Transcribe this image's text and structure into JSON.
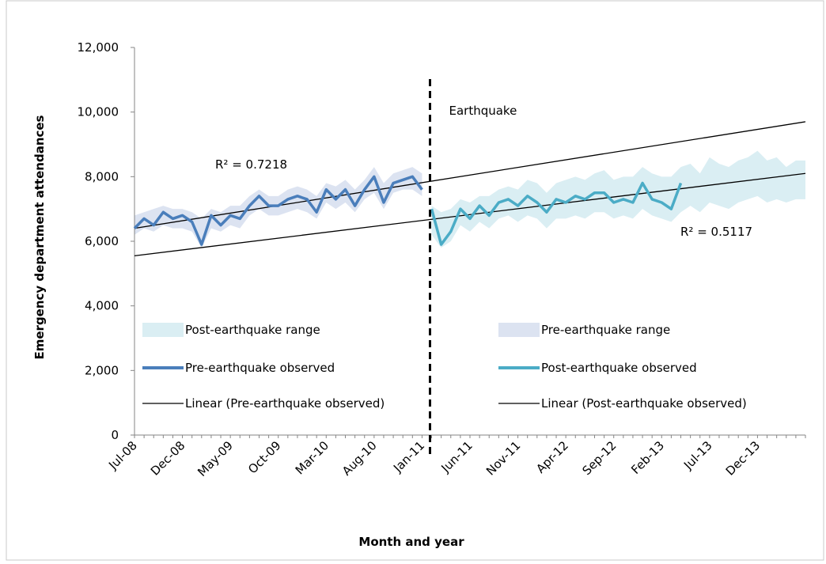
{
  "chart_data": {
    "type": "line",
    "xlabel": "Month and year",
    "ylabel": "Emergency department attendances",
    "categories": [
      "Jul-08",
      null,
      null,
      null,
      null,
      "Dec-08",
      null,
      null,
      null,
      null,
      "May-09",
      null,
      null,
      null,
      null,
      "Oct-09",
      null,
      null,
      null,
      null,
      "Mar-10",
      null,
      null,
      null,
      null,
      "Aug-10",
      null,
      null,
      null,
      null,
      "Jan-11",
      null,
      null,
      null,
      null,
      "Jun-11",
      null,
      null,
      null,
      null,
      "Nov-11",
      null,
      null,
      null,
      null,
      "Apr-12",
      null,
      null,
      null,
      null,
      "Sep-12",
      null,
      null,
      null,
      null,
      "Feb-13",
      null,
      null,
      null,
      null,
      "Jul-13",
      null,
      null,
      null,
      null,
      "Dec-13",
      null,
      null,
      null,
      null,
      null
    ],
    "ylim": [
      0,
      12000
    ],
    "yticks": [
      0,
      {
        "value": 2000,
        "label": "2,000"
      },
      {
        "value": 4000,
        "label": "4,000"
      },
      {
        "value": 6000,
        "label": "6,000"
      },
      {
        "value": 8000,
        "label": "8,000"
      },
      {
        "value": 10000,
        "label": "10,000"
      },
      {
        "value": 12000,
        "label": "12,000"
      }
    ],
    "bands": [
      {
        "name": "Post-earthquake range",
        "color": "#daeef3",
        "upper": [
          null,
          null,
          null,
          null,
          null,
          null,
          null,
          null,
          null,
          null,
          null,
          null,
          null,
          null,
          null,
          null,
          null,
          null,
          null,
          null,
          null,
          null,
          null,
          null,
          null,
          null,
          null,
          null,
          null,
          null,
          null,
          7100,
          6900,
          7000,
          7300,
          7200,
          7400,
          7400,
          7600,
          7700,
          7600,
          7900,
          7800,
          7500,
          7800,
          7900,
          8000,
          7900,
          8100,
          8200,
          7900,
          8000,
          8000,
          8300,
          8100,
          8000,
          8000,
          8300,
          8400,
          8100,
          8600,
          8400,
          8300,
          8500,
          8600,
          8800,
          8500,
          8600,
          8300,
          8500,
          8500
        ],
        "lower": [
          null,
          null,
          null,
          null,
          null,
          null,
          null,
          null,
          null,
          null,
          null,
          null,
          null,
          null,
          null,
          null,
          null,
          null,
          null,
          null,
          null,
          null,
          null,
          null,
          null,
          null,
          null,
          null,
          null,
          null,
          null,
          6200,
          5800,
          6000,
          6500,
          6300,
          6600,
          6400,
          6700,
          6800,
          6600,
          6800,
          6700,
          6400,
          6700,
          6700,
          6800,
          6700,
          6900,
          6900,
          6700,
          6800,
          6700,
          7000,
          6800,
          6700,
          6600,
          6900,
          7100,
          6900,
          7200,
          7100,
          7000,
          7200,
          7300,
          7400,
          7200,
          7300,
          7200,
          7300,
          7300
        ]
      },
      {
        "name": "Pre-earthquake range",
        "color": "#dce3f1",
        "upper": [
          6800,
          6900,
          7000,
          7100,
          7000,
          7000,
          6900,
          6700,
          7000,
          6900,
          7100,
          7100,
          7400,
          7600,
          7400,
          7400,
          7600,
          7700,
          7600,
          7400,
          7800,
          7700,
          7900,
          7600,
          7900,
          8300,
          7800,
          8100,
          8200,
          8300,
          8100,
          null,
          null,
          null,
          null,
          null,
          null,
          null,
          null,
          null,
          null,
          null,
          null,
          null,
          null,
          null,
          null,
          null,
          null,
          null,
          null,
          null,
          null,
          null,
          null,
          null,
          null,
          null,
          null,
          null,
          null,
          null,
          null,
          null,
          null,
          null,
          null,
          null,
          null,
          null,
          null
        ],
        "lower": [
          6200,
          6400,
          6300,
          6500,
          6400,
          6400,
          6300,
          5800,
          6400,
          6300,
          6500,
          6400,
          6800,
          7000,
          6800,
          6800,
          6900,
          7000,
          6900,
          6700,
          7200,
          7000,
          7200,
          6900,
          7300,
          7500,
          7000,
          7500,
          7600,
          7600,
          7400,
          null,
          null,
          null,
          null,
          null,
          null,
          null,
          null,
          null,
          null,
          null,
          null,
          null,
          null,
          null,
          null,
          null,
          null,
          null,
          null,
          null,
          null,
          null,
          null,
          null,
          null,
          null,
          null,
          null,
          null,
          null,
          null,
          null,
          null,
          null,
          null,
          null,
          null,
          null,
          null
        ]
      }
    ],
    "series": [
      {
        "name": "Pre-earthquake observed",
        "color": "#4a7ebb",
        "values": [
          6400,
          6700,
          6500,
          6900,
          6700,
          6800,
          6600,
          5900,
          6800,
          6500,
          6800,
          6700,
          7100,
          7400,
          7100,
          7100,
          7300,
          7400,
          7300,
          6900,
          7600,
          7300,
          7600,
          7100,
          7600,
          8000,
          7200,
          7800,
          7900,
          8000,
          7600,
          null,
          null,
          null,
          null,
          null,
          null,
          null,
          null,
          null,
          null,
          null,
          null,
          null,
          null,
          null,
          null,
          null,
          null,
          null,
          null,
          null,
          null,
          null,
          null,
          null,
          null,
          null,
          null,
          null,
          null,
          null,
          null,
          null,
          null,
          null,
          null,
          null,
          null,
          null,
          null
        ]
      },
      {
        "name": "Post-earthquake observed",
        "color": "#4bacc6",
        "values": [
          null,
          null,
          null,
          null,
          null,
          null,
          null,
          null,
          null,
          null,
          null,
          null,
          null,
          null,
          null,
          null,
          null,
          null,
          null,
          null,
          null,
          null,
          null,
          null,
          null,
          null,
          null,
          null,
          null,
          null,
          null,
          7000,
          5900,
          6300,
          7000,
          6700,
          7100,
          6800,
          7200,
          7300,
          7100,
          7400,
          7200,
          6900,
          7300,
          7200,
          7400,
          7300,
          7500,
          7500,
          7200,
          7300,
          7200,
          7800,
          7300,
          7200,
          7000,
          7800,
          null,
          null,
          null,
          null,
          null,
          null,
          null,
          null,
          null,
          null,
          null,
          null,
          null
        ]
      }
    ],
    "trendlines": [
      {
        "name": "Linear (Pre-earthquake observed)",
        "color": "#000000",
        "values": [
          6400,
          9700
        ]
      },
      {
        "name": "Linear (Post-earthquake observed)",
        "color": "#000000",
        "values": [
          5550,
          8100
        ]
      }
    ],
    "annotations": [
      "Earthquake",
      "R² = 0.7218",
      "R² = 0.5117"
    ]
  }
}
